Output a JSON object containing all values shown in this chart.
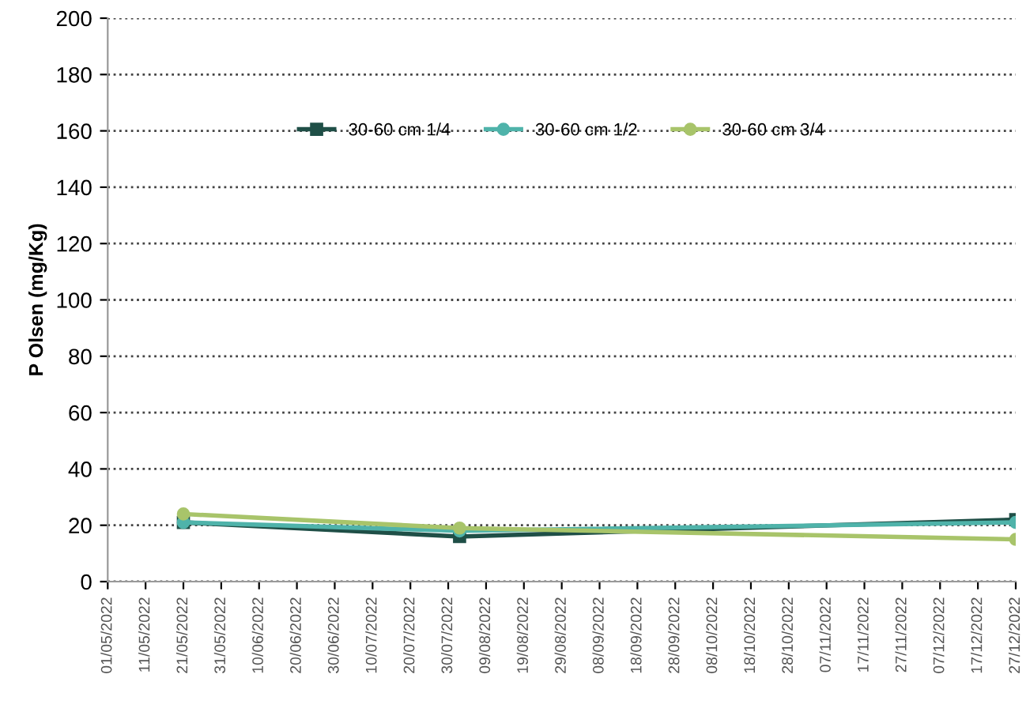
{
  "chart_data": {
    "type": "line",
    "ylabel": "P Olsen (mg/Kg)",
    "x": [
      "2022-05-21",
      "2022-08-02",
      "2022-12-27"
    ],
    "series": [
      {
        "name": "30-60 cm 1/4",
        "color": "#1f4f47",
        "marker": "square",
        "values": [
          21,
          16,
          22
        ]
      },
      {
        "name": "30-60 cm 1/2",
        "color": "#4fb3aa",
        "marker": "circle",
        "values": [
          21,
          18,
          21
        ]
      },
      {
        "name": "30-60 cm 3/4",
        "color": "#a8c46a",
        "marker": "circle",
        "values": [
          24,
          19,
          15
        ]
      }
    ],
    "xlim": [
      "2022-05-01",
      "2022-12-27"
    ],
    "xticks": [
      {
        "value": "2022-05-01",
        "label": "01/05/2022"
      },
      {
        "value": "2022-05-11",
        "label": "11/05/2022"
      },
      {
        "value": "2022-05-21",
        "label": "21/05/2022"
      },
      {
        "value": "2022-05-31",
        "label": "31/05/2022"
      },
      {
        "value": "2022-06-10",
        "label": "10/06/2022"
      },
      {
        "value": "2022-06-20",
        "label": "20/06/2022"
      },
      {
        "value": "2022-06-30",
        "label": "30/06/2022"
      },
      {
        "value": "2022-07-10",
        "label": "10/07/2022"
      },
      {
        "value": "2022-07-20",
        "label": "20/07/2022"
      },
      {
        "value": "2022-07-30",
        "label": "30/07/2022"
      },
      {
        "value": "2022-08-09",
        "label": "09/08/2022"
      },
      {
        "value": "2022-08-19",
        "label": "19/08/2022"
      },
      {
        "value": "2022-08-29",
        "label": "29/08/2022"
      },
      {
        "value": "2022-09-08",
        "label": "08/09/2022"
      },
      {
        "value": "2022-09-18",
        "label": "18/09/2022"
      },
      {
        "value": "2022-09-28",
        "label": "28/09/2022"
      },
      {
        "value": "2022-10-08",
        "label": "08/10/2022"
      },
      {
        "value": "2022-10-18",
        "label": "18/10/2022"
      },
      {
        "value": "2022-10-28",
        "label": "28/10/2022"
      },
      {
        "value": "2022-11-07",
        "label": "07/11/2022"
      },
      {
        "value": "2022-11-17",
        "label": "17/11/2022"
      },
      {
        "value": "2022-11-27",
        "label": "27/11/2022"
      },
      {
        "value": "2022-12-07",
        "label": "07/12/2022"
      },
      {
        "value": "2022-12-17",
        "label": "17/12/2022"
      },
      {
        "value": "2022-12-27",
        "label": "27/12/2022"
      }
    ],
    "ylim": [
      0,
      200
    ],
    "yticks": [
      0,
      20,
      40,
      60,
      80,
      100,
      120,
      140,
      160,
      180,
      200
    ],
    "grid": "y",
    "legend": "top",
    "line_style": "solid"
  }
}
